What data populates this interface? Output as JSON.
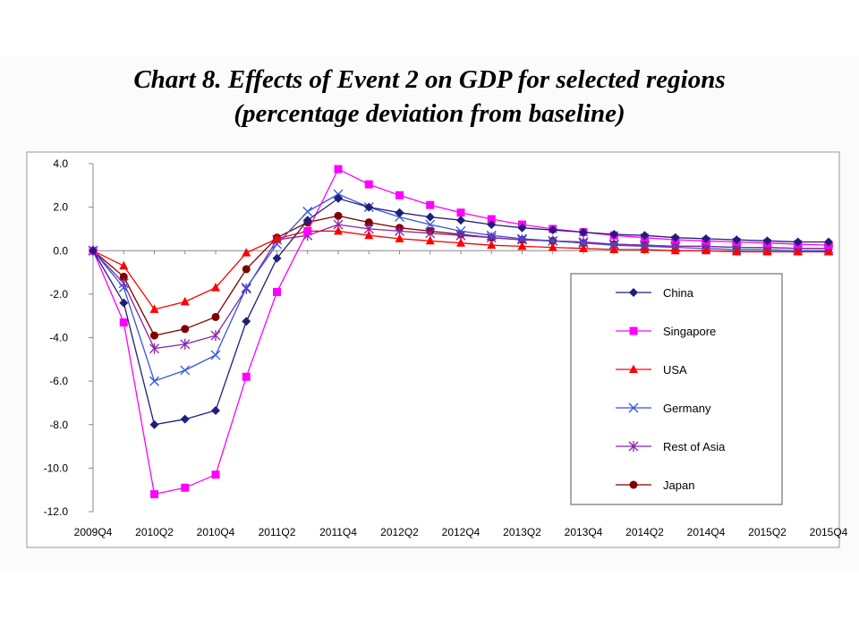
{
  "title_line1": "Chart 8.  Effects of Event 2 on GDP for selected regions",
  "title_line2": "(percentage deviation from baseline)",
  "chart_data": {
    "type": "line",
    "title": "Chart 8.  Effects of Event 2 on GDP for selected regions (percentage deviation from baseline)",
    "xlabel": "",
    "ylabel": "",
    "ylim": [
      -12,
      4
    ],
    "yticks": [
      "4.0",
      "2.0",
      "0.0",
      "-2.0",
      "-4.0",
      "-6.0",
      "-8.0",
      "-10.0",
      "-12.0"
    ],
    "ytick_values": [
      4,
      2,
      0,
      -2,
      -4,
      -6,
      -8,
      -10,
      -12
    ],
    "xtick_labels": [
      "2009Q4",
      "2010Q2",
      "2010Q4",
      "2011Q2",
      "2011Q4",
      "2012Q2",
      "2012Q4",
      "2013Q2",
      "2013Q4",
      "2014Q2",
      "2014Q4",
      "2015Q2",
      "2015Q4"
    ],
    "x": [
      "2009Q4",
      "2010Q1",
      "2010Q2",
      "2010Q3",
      "2010Q4",
      "2011Q1",
      "2011Q2",
      "2011Q3",
      "2011Q4",
      "2012Q1",
      "2012Q2",
      "2012Q3",
      "2012Q4",
      "2013Q1",
      "2013Q2",
      "2013Q3",
      "2013Q4",
      "2014Q1",
      "2014Q2",
      "2014Q3",
      "2014Q4",
      "2015Q1",
      "2015Q2",
      "2015Q3",
      "2015Q4"
    ],
    "grid": false,
    "legend_position": "right",
    "series": [
      {
        "name": "China",
        "color": "#1f1f7a",
        "marker": "diamond",
        "values": [
          0,
          -2.4,
          -8.0,
          -7.75,
          -7.35,
          -3.25,
          -0.35,
          1.4,
          2.4,
          2.0,
          1.75,
          1.55,
          1.4,
          1.2,
          1.05,
          0.95,
          0.85,
          0.75,
          0.7,
          0.6,
          0.55,
          0.5,
          0.45,
          0.4,
          0.4
        ]
      },
      {
        "name": "Singapore",
        "color": "#ff00ff",
        "marker": "square",
        "values": [
          0,
          -3.3,
          -11.2,
          -10.9,
          -10.3,
          -5.8,
          -1.9,
          0.9,
          3.75,
          3.05,
          2.55,
          2.1,
          1.75,
          1.45,
          1.2,
          1.0,
          0.85,
          0.7,
          0.6,
          0.5,
          0.45,
          0.4,
          0.35,
          0.3,
          0.25
        ]
      },
      {
        "name": "USA",
        "color": "#ff0000",
        "marker": "triangle",
        "values": [
          0,
          -0.7,
          -2.7,
          -2.35,
          -1.7,
          -0.1,
          0.55,
          0.9,
          0.9,
          0.7,
          0.55,
          0.45,
          0.35,
          0.25,
          0.2,
          0.15,
          0.1,
          0.05,
          0.05,
          0.0,
          0.0,
          -0.05,
          -0.05,
          -0.05,
          -0.05
        ]
      },
      {
        "name": "Germany",
        "color": "#3355dd",
        "marker": "x",
        "values": [
          0,
          -1.7,
          -6.0,
          -5.5,
          -4.8,
          -1.7,
          0.3,
          1.8,
          2.6,
          2.0,
          1.55,
          1.2,
          0.9,
          0.7,
          0.55,
          0.45,
          0.35,
          0.25,
          0.2,
          0.15,
          0.1,
          0.05,
          0.05,
          0.0,
          0.0
        ]
      },
      {
        "name": "Rest of Asia",
        "color": "#8822aa",
        "marker": "asterisk",
        "values": [
          0,
          -1.5,
          -4.5,
          -4.3,
          -3.9,
          -1.75,
          0.5,
          0.7,
          1.2,
          1.0,
          0.9,
          0.8,
          0.7,
          0.6,
          0.5,
          0.45,
          0.4,
          0.3,
          0.25,
          0.2,
          0.2,
          0.15,
          0.15,
          0.1,
          0.1
        ]
      },
      {
        "name": "Japan",
        "color": "#800000",
        "marker": "circle",
        "values": [
          0,
          -1.2,
          -3.9,
          -3.6,
          -3.05,
          -0.85,
          0.6,
          1.3,
          1.6,
          1.3,
          1.05,
          0.9,
          0.75,
          0.6,
          0.5,
          0.45,
          0.35,
          0.3,
          0.25,
          0.2,
          0.2,
          0.15,
          0.15,
          0.1,
          0.1
        ]
      }
    ]
  }
}
